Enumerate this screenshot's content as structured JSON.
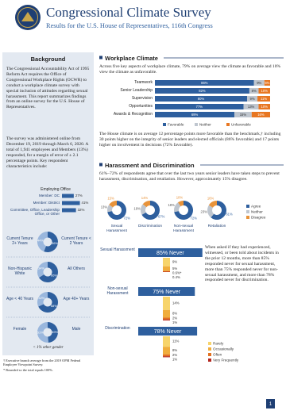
{
  "header": {
    "title": "Congressional Climate Survey",
    "subtitle": "Results for the U.S. House of Representatives, 116th Congress"
  },
  "background": {
    "heading": "Background",
    "paragraphs": [
      "The Congressional Accountability Act of 1995 Reform Act requires the Office of Congressional Workplace Rights (OCWR) to conduct a workplace climate survey with special inclusion of attitudes regarding sexual harassment. This report summarizes findings from an online survey for the U.S. House of Representatives.",
      "The survey was administered online from December 19, 2019 through March 6, 2020. A total of 1,941 employees and Members (13%) responded, for a margin of error of ± 2.1 percentage points. Key respondent characteristics include:"
    ],
    "employing_office": {
      "title": "Employing Office",
      "categories": [
        "Member: DC",
        "Member: District",
        "Committee, Office, Leadership Office, or Other"
      ],
      "values": [
        27,
        41,
        32
      ],
      "value_labels": [
        "27%",
        "41%",
        "32%"
      ],
      "color": "#2e5f9e"
    },
    "demographics": {
      "colors": [
        "#2e5f9e",
        "#9ab7dd"
      ],
      "rows": [
        {
          "labels": [
            "Current Tenure 2+ Years",
            "Current Tenure < 2 Years"
          ],
          "values": [
            56,
            44
          ],
          "value_labels": [
            "56%",
            "44%"
          ]
        },
        {
          "labels": [
            "Non-Hispanic White",
            "All Others"
          ],
          "values": [
            66,
            34
          ],
          "value_labels": [
            "66%",
            "34%"
          ]
        },
        {
          "labels": [
            "Age < 40 Years",
            "Age 40+ Years"
          ],
          "values": [
            68,
            32
          ],
          "value_labels": [
            "68%",
            "32%"
          ]
        },
        {
          "labels": [
            "Female",
            "Male"
          ],
          "values": [
            49,
            51
          ],
          "value_labels": [
            "49%",
            "51%"
          ]
        }
      ]
    },
    "note": "< 1% other gender"
  },
  "footnotes": [
    "† Executive branch average from the 2019 OPM Federal Employee Viewpoint Survey.",
    "* Rounded so the total equals 100%."
  ],
  "workplace_climate": {
    "heading": "Workplace Climate",
    "intro": "Across five key aspects of workplace climate, 79% on average view the climate as favorable and 10% view the climate as unfavorable.",
    "chart": {
      "categories": [
        "Teamwork",
        "Senior Leadership",
        "Supervision",
        "Opportunities",
        "Awards & Recognition"
      ],
      "series": [
        {
          "name": "Favorable",
          "color": "#2e5f9e",
          "values": [
            86,
            82,
            80,
            77,
            69
          ],
          "value_labels": [
            "86%",
            "82%",
            "80%",
            "77%",
            "69%"
          ]
        },
        {
          "name": "Neither",
          "color": "#bfc6cf",
          "values": [
            9,
            8,
            9,
            13,
            15
          ],
          "value_labels": [
            "9%",
            "8%",
            "9%",
            "13%",
            "15%"
          ]
        },
        {
          "name": "Unfavorable",
          "color": "#e87722",
          "values": [
            5,
            10,
            11,
            10,
            16
          ],
          "value_labels": [
            "5%",
            "10%",
            "11%",
            "10%",
            "16%"
          ]
        }
      ]
    },
    "paragraph": "The House climate is on average 12 percentage points more favorable than the benchmark,† including 30 points higher on the integrity of senior leaders and elected officials (86% favorable) and 17 points higher on involvement in decisions (72% favorable)."
  },
  "harassment": {
    "heading": "Harassment and Discrimination",
    "intro": "61%–72% of respondents agree that over the last two years senior leaders have taken steps to prevent harassment, discrimination, and retaliation. However, approximately 15% disagree.",
    "agreement": {
      "categories": [
        "Sexual Harassment",
        "Discrimination",
        "Non-sexual Harassment",
        "Retaliation"
      ],
      "series": [
        {
          "name": "Agree",
          "color": "#2e5f9e",
          "values": [
            72,
            67,
            72,
            61
          ],
          "value_labels": [
            "72%",
            "67%",
            "72%",
            "61%"
          ]
        },
        {
          "name": "Neither",
          "color": "#bfc6cf",
          "values": [
            13,
            19,
            18,
            23
          ],
          "value_labels": [
            "13%",
            "19%",
            "18%",
            "23%"
          ]
        },
        {
          "name": "Disagree",
          "color": "#e8933a",
          "values": [
            15,
            14,
            10,
            16
          ],
          "value_labels": [
            "15%",
            "14%",
            "10%",
            "16%"
          ]
        }
      ]
    },
    "experience": {
      "categories": [
        "Sexual Harassment",
        "Non-sexual Harassment",
        "Discrimination"
      ],
      "never_color": "#2e5f9e",
      "never": [
        85,
        75,
        78
      ],
      "never_labels": [
        "85% Never",
        "75% Never",
        "78% Never"
      ],
      "series": [
        {
          "name": "Rarely",
          "color": "#f7d46b",
          "values": [
            9,
            14,
            11
          ],
          "value_labels": [
            "9%",
            "14%",
            "11%"
          ]
        },
        {
          "name": "Occasionally",
          "color": "#f0ad3c",
          "values": [
            5,
            8,
            8
          ],
          "value_labels": [
            "5%",
            "8%",
            "8%"
          ]
        },
        {
          "name": "Often",
          "color": "#e2701f",
          "values": [
            0.6,
            2,
            2
          ],
          "value_labels": [
            "0.6%*",
            "2%",
            "2%"
          ]
        },
        {
          "name": "Very Frequently",
          "color": "#b3261e",
          "values": [
            0.4,
            1,
            1
          ],
          "value_labels": [
            "0.4%",
            "1%",
            "1%"
          ]
        }
      ]
    },
    "side_text": "When asked if they had experienced, witnessed, or been told about incidents in the prior 12 months, more than 85% responded never for sexual harassment, more than 75% responded never for non-sexual harassment, and more than 78% responded never for discrimination."
  },
  "footer": {
    "page": "1"
  }
}
